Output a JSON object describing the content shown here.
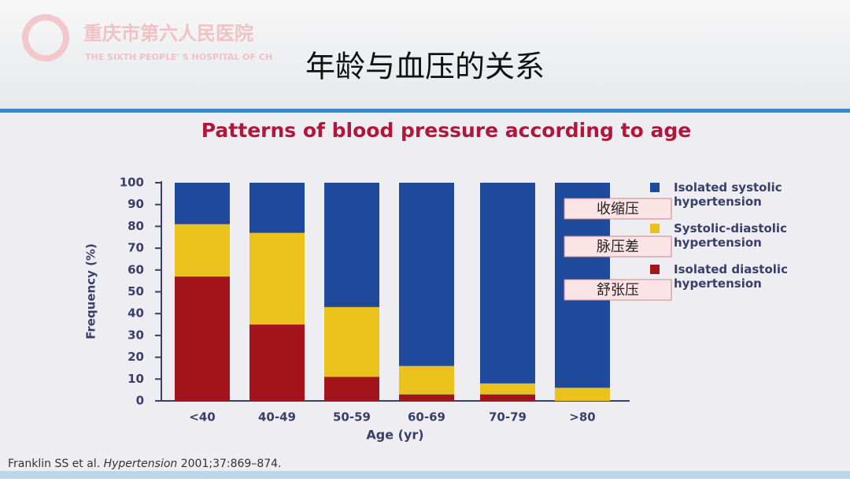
{
  "header": {
    "logo_name": "重庆市第六人民医院",
    "logo_subtitle": "THE SIXTH PEOPLE' S HOSPITAL OF CH",
    "title": "年龄与血压的关系"
  },
  "chart_data": {
    "type": "stacked_bar",
    "title": "Patterns of blood pressure according to age",
    "x_label": "Age (yr)",
    "y_label": "Frequency (%)",
    "categories": [
      "<40",
      "40-49",
      "50-59",
      "60-69",
      "70-79",
      ">80"
    ],
    "series": [
      {
        "name": "Isolated diastolic hypertension",
        "color": "#a3141c",
        "values": [
          57,
          35,
          11,
          3,
          3,
          0
        ]
      },
      {
        "name": "Systolic-diastolic hypertension",
        "color": "#eac21c",
        "values": [
          24,
          42,
          32,
          13,
          5,
          6
        ]
      },
      {
        "name": "Isolated systolic hypertension",
        "color": "#1f4a9c",
        "values": [
          19,
          23,
          57,
          84,
          92,
          94
        ]
      }
    ],
    "ylim": [
      0,
      100
    ],
    "yticks": [
      0,
      10,
      20,
      30,
      40,
      50,
      60,
      70,
      80,
      90,
      100
    ],
    "annotations": [
      "收缩压",
      "脉压差",
      "舒张压"
    ],
    "citation": {
      "authors": "Franklin SS et al.",
      "journal": "Hypertension",
      "ref": "2001;37:869–874."
    }
  }
}
